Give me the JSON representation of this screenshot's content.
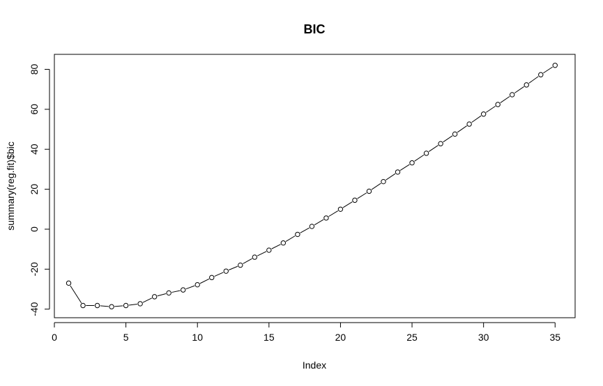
{
  "chart_data": {
    "type": "line",
    "title": "BIC",
    "xlabel": "Index",
    "ylabel": "summary(reg.fit)$bic",
    "xlim": [
      0,
      36.4
    ],
    "ylim": [
      -44.3,
      87.5
    ],
    "xticks": [
      0,
      5,
      10,
      15,
      20,
      25,
      30,
      35
    ],
    "yticks": [
      -40,
      -20,
      0,
      20,
      40,
      60,
      80
    ],
    "grid": false,
    "markers": "open-circle",
    "series": [
      {
        "x": [
          1,
          2,
          3,
          4,
          5,
          6,
          7,
          8,
          9,
          10,
          11,
          12,
          13,
          14,
          15,
          16,
          17,
          18,
          19,
          20,
          21,
          22,
          23,
          24,
          25,
          26,
          27,
          28,
          29,
          30,
          31,
          32,
          33,
          34,
          35
        ],
        "values": [
          -27,
          -38.2,
          -38.2,
          -38.8,
          -38.2,
          -37.3,
          -33.8,
          -31.9,
          -30.4,
          -27.8,
          -24.2,
          -21,
          -18,
          -14,
          -10.5,
          -6.9,
          -2.6,
          1.4,
          5.6,
          10,
          14.5,
          19,
          23.8,
          28.6,
          33.2,
          38,
          42.8,
          47.6,
          52.6,
          57.6,
          62.4,
          67.3,
          72.2,
          77.3,
          82
        ]
      }
    ],
    "colors": {
      "line": "#000000",
      "axis": "#000000",
      "background": "#ffffff"
    }
  }
}
